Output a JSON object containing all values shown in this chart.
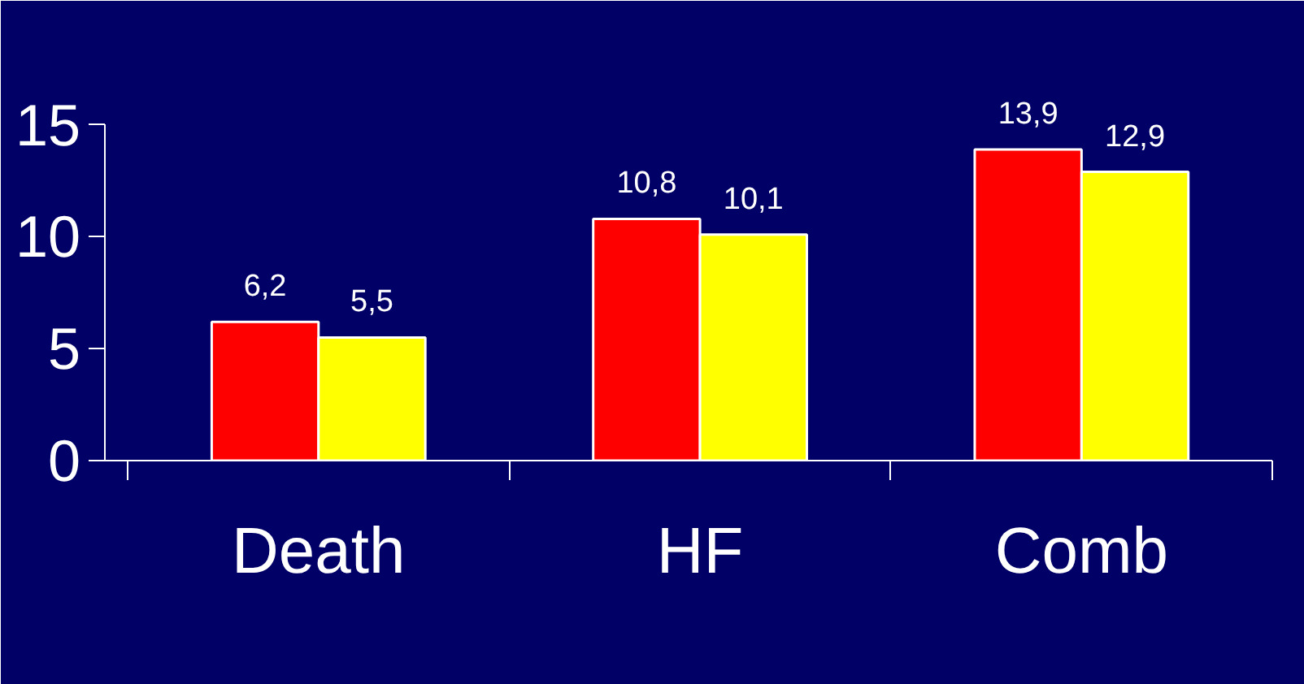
{
  "chart_data": {
    "type": "bar",
    "categories": [
      "Death",
      "HF",
      "Comb"
    ],
    "series": [
      {
        "color": "#ff0000",
        "values": [
          6.2,
          10.8,
          13.9
        ],
        "value_labels": [
          "6,2",
          "10,8",
          "13,9"
        ]
      },
      {
        "color": "#ffff00",
        "values": [
          5.5,
          10.1,
          12.9
        ],
        "value_labels": [
          "5,5",
          "10,1",
          "12,9"
        ]
      }
    ],
    "ylim": [
      0,
      15
    ],
    "yticks": [
      0,
      5,
      10,
      15
    ],
    "grid": false
  }
}
